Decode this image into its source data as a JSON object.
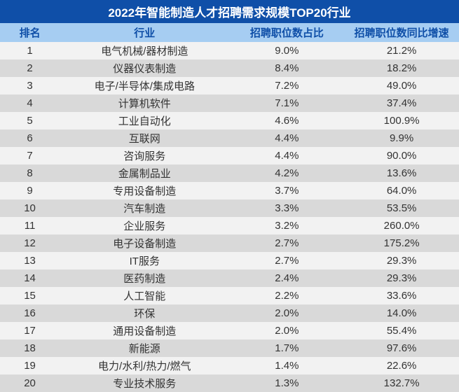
{
  "title": "2022年智能制造人才招聘需求规模TOP20行业",
  "title_bg": "#0f4fa8",
  "title_color": "#ffffff",
  "title_fontsize": 17,
  "header_bg": "#a6cdf2",
  "header_color": "#0f4fa8",
  "header_fontsize": 15,
  "row_odd_bg": "#f2f2f2",
  "row_even_bg": "#d9d9d9",
  "cell_color": "#333333",
  "cell_fontsize": 15,
  "columns": [
    {
      "label": "排名",
      "width": "13%"
    },
    {
      "label": "行业",
      "width": "37%"
    },
    {
      "label": "招聘职位数占比",
      "width": "25%"
    },
    {
      "label": "招聘职位数同比增速",
      "width": "25%"
    }
  ],
  "rows": [
    {
      "rank": "1",
      "industry": "电气机械/器材制造",
      "share": "9.0%",
      "growth": "21.2%"
    },
    {
      "rank": "2",
      "industry": "仪器仪表制造",
      "share": "8.4%",
      "growth": "18.2%"
    },
    {
      "rank": "3",
      "industry": "电子/半导体/集成电路",
      "share": "7.2%",
      "growth": "49.0%"
    },
    {
      "rank": "4",
      "industry": "计算机软件",
      "share": "7.1%",
      "growth": "37.4%"
    },
    {
      "rank": "5",
      "industry": "工业自动化",
      "share": "4.6%",
      "growth": "100.9%"
    },
    {
      "rank": "6",
      "industry": "互联网",
      "share": "4.4%",
      "growth": "9.9%"
    },
    {
      "rank": "7",
      "industry": "咨询服务",
      "share": "4.4%",
      "growth": "90.0%"
    },
    {
      "rank": "8",
      "industry": "金属制品业",
      "share": "4.2%",
      "growth": "13.6%"
    },
    {
      "rank": "9",
      "industry": "专用设备制造",
      "share": "3.7%",
      "growth": "64.0%"
    },
    {
      "rank": "10",
      "industry": "汽车制造",
      "share": "3.3%",
      "growth": "53.5%"
    },
    {
      "rank": "11",
      "industry": "企业服务",
      "share": "3.2%",
      "growth": "260.0%"
    },
    {
      "rank": "12",
      "industry": "电子设备制造",
      "share": "2.7%",
      "growth": "175.2%"
    },
    {
      "rank": "13",
      "industry": "IT服务",
      "share": "2.7%",
      "growth": "29.3%"
    },
    {
      "rank": "14",
      "industry": "医药制造",
      "share": "2.4%",
      "growth": "29.3%"
    },
    {
      "rank": "15",
      "industry": "人工智能",
      "share": "2.2%",
      "growth": "33.6%"
    },
    {
      "rank": "16",
      "industry": "环保",
      "share": "2.0%",
      "growth": "14.0%"
    },
    {
      "rank": "17",
      "industry": "通用设备制造",
      "share": "2.0%",
      "growth": "55.4%"
    },
    {
      "rank": "18",
      "industry": "新能源",
      "share": "1.7%",
      "growth": "97.6%"
    },
    {
      "rank": "19",
      "industry": "电力/水利/热力/燃气",
      "share": "1.4%",
      "growth": "22.6%"
    },
    {
      "rank": "20",
      "industry": "专业技术服务",
      "share": "1.3%",
      "growth": "132.7%"
    }
  ]
}
